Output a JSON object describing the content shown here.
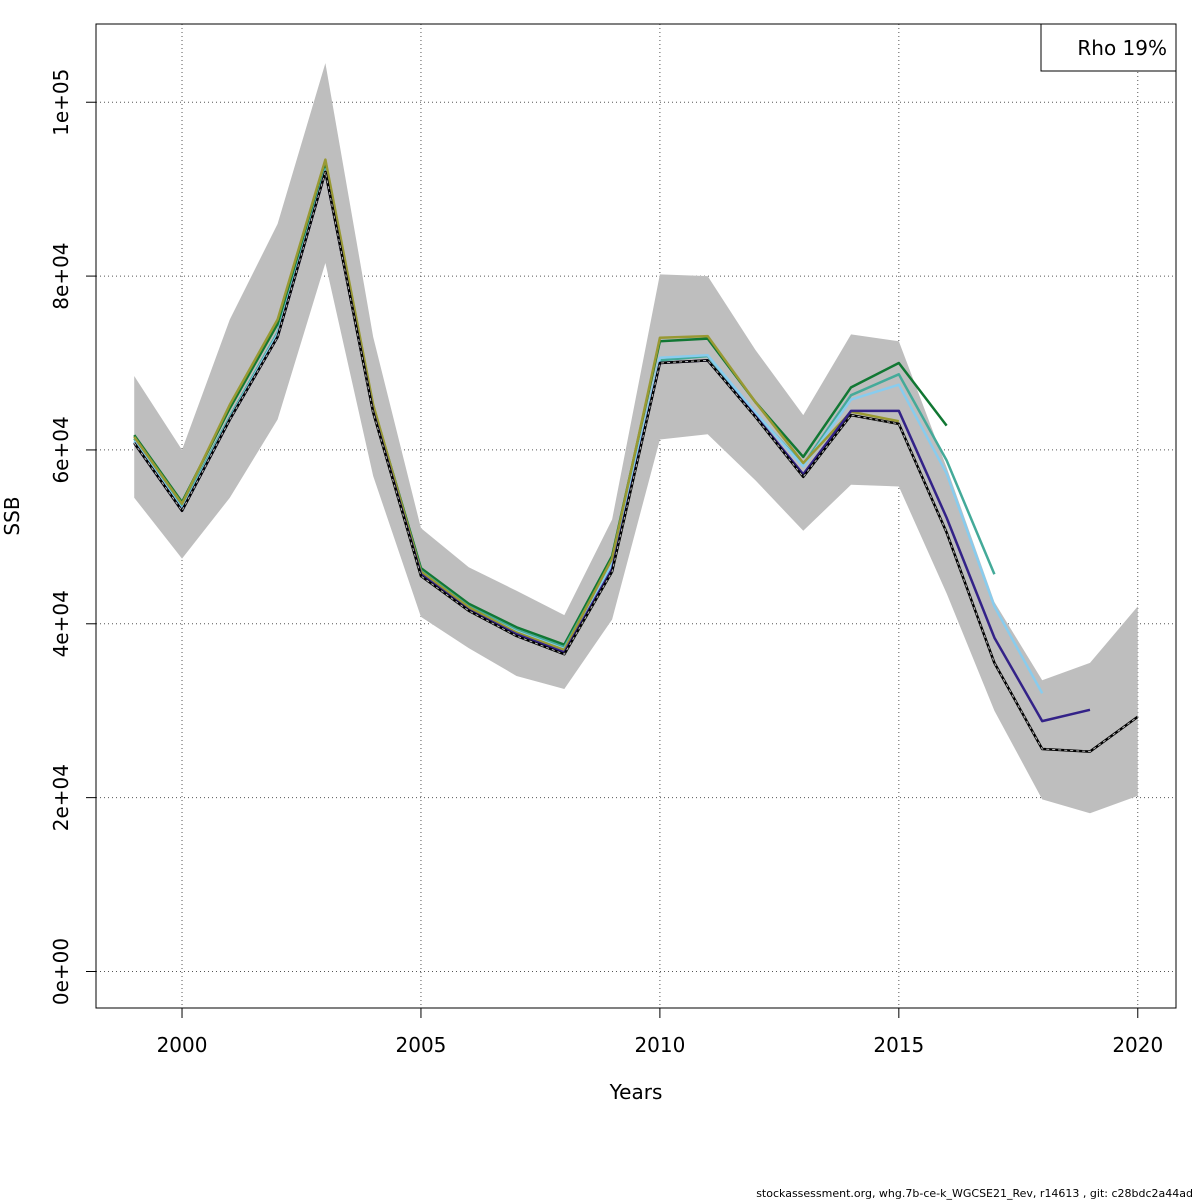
{
  "chart_data": {
    "type": "line",
    "title": "",
    "xlabel": "Years",
    "ylabel": "SSB",
    "xlim": [
      1998.2,
      2020.8
    ],
    "ylim": [
      -4200,
      109000
    ],
    "xticks": [
      2000,
      2005,
      2010,
      2015,
      2020
    ],
    "xtick_labels": [
      "2000",
      "2005",
      "2010",
      "2015",
      "2020"
    ],
    "yticks": [
      0,
      20000,
      40000,
      60000,
      80000,
      100000
    ],
    "ytick_labels": [
      "0e+00",
      "2e+04",
      "4e+04",
      "6e+04",
      "8e+04",
      "1e+05"
    ],
    "grid": true,
    "legend": {
      "placement": "top-right",
      "text": "Rho 19%"
    },
    "confidence_band": {
      "x": [
        1999,
        2000,
        2001,
        2002,
        2003,
        2004,
        2005,
        2006,
        2007,
        2008,
        2009,
        2010,
        2011,
        2012,
        2013,
        2014,
        2015,
        2016,
        2017,
        2018,
        2019,
        2020
      ],
      "upper": [
        68500,
        60000,
        75000,
        86000,
        104500,
        73000,
        51000,
        46500,
        43800,
        41000,
        52000,
        80200,
        80000,
        71500,
        64000,
        73300,
        72500,
        58000,
        42500,
        33500,
        35500,
        42000
      ],
      "lower": [
        54500,
        47500,
        54500,
        63500,
        81500,
        57000,
        40800,
        37200,
        34000,
        32500,
        40500,
        61200,
        61800,
        56500,
        50700,
        56000,
        55800,
        43500,
        30000,
        19800,
        18200,
        20200
      ],
      "color": "#bebebe"
    },
    "series": [
      {
        "x": [
          1999,
          2000,
          2001,
          2002,
          2003,
          2004,
          2005,
          2006,
          2007,
          2008,
          2009,
          2010,
          2011,
          2012,
          2013,
          2014,
          2015,
          2016
        ],
        "values": [
          61700,
          54000,
          64800,
          74500,
          93000,
          65000,
          46400,
          42300,
          39600,
          37600,
          47800,
          72500,
          72800,
          65500,
          59200,
          67200,
          70000,
          62800
        ],
        "color": "#117733",
        "width": 2.5,
        "dashed": false
      },
      {
        "x": [
          1999,
          2000,
          2001,
          2002,
          2003,
          2004,
          2005,
          2006,
          2007,
          2008,
          2009,
          2010,
          2011,
          2012,
          2013,
          2014,
          2015,
          2016,
          2017
        ],
        "values": [
          61300,
          53500,
          63800,
          73500,
          92300,
          64700,
          46100,
          42000,
          39300,
          37300,
          47300,
          70300,
          70800,
          64200,
          58300,
          66300,
          68700,
          58800,
          45700
        ],
        "color": "#44aa99",
        "width": 2.5,
        "dashed": false
      },
      {
        "x": [
          1999,
          2000,
          2001,
          2002,
          2003,
          2004,
          2005,
          2006,
          2007,
          2008,
          2009,
          2010,
          2011,
          2012,
          2013,
          2014,
          2015,
          2016,
          2017,
          2018
        ],
        "values": [
          61000,
          53200,
          63600,
          73300,
          92100,
          64500,
          45900,
          41800,
          39100,
          37100,
          46900,
          70600,
          70900,
          64300,
          58100,
          65800,
          67500,
          57300,
          42000,
          32000
        ],
        "color": "#88ccee",
        "width": 2.5,
        "dashed": false
      },
      {
        "x": [
          1999,
          2000,
          2001,
          2002,
          2003,
          2004,
          2005,
          2006,
          2007,
          2008,
          2009,
          2010,
          2011,
          2012,
          2013,
          2014,
          2015
        ],
        "values": [
          61500,
          53800,
          65200,
          75000,
          93400,
          65200,
          46000,
          41900,
          39000,
          37000,
          47500,
          72900,
          73100,
          65500,
          58500,
          64400,
          63300
        ],
        "color": "#999933",
        "width": 2.5,
        "dashed": false
      },
      {
        "x": [
          1999,
          2000,
          2001,
          2002,
          2003,
          2004,
          2005,
          2006,
          2007,
          2008,
          2009,
          2010,
          2011,
          2012,
          2013,
          2014,
          2015,
          2016,
          2017,
          2018,
          2019
        ],
        "values": [
          60800,
          53000,
          63500,
          73000,
          92000,
          64400,
          45700,
          41600,
          38800,
          36700,
          46300,
          70000,
          70300,
          63900,
          57200,
          64500,
          64500,
          52200,
          38400,
          28800,
          30100
        ],
        "color": "#332288",
        "width": 2.5,
        "dashed": false
      },
      {
        "x": [
          1999,
          2000,
          2001,
          2002,
          2003,
          2004,
          2005,
          2006,
          2007,
          2008,
          2009,
          2010,
          2011,
          2012,
          2013,
          2014,
          2015,
          2016,
          2017,
          2018,
          2019,
          2020
        ],
        "values": [
          60800,
          53000,
          63500,
          73000,
          92000,
          64300,
          45500,
          41500,
          38600,
          36500,
          46000,
          70000,
          70300,
          63800,
          56900,
          64000,
          63000,
          50500,
          35500,
          25600,
          25300,
          29300
        ],
        "color": "#000000",
        "width": 2,
        "dashed": true
      }
    ]
  },
  "footer": "stockassessment.org, whg.7b-ce-k_WGCSE21_Rev, r14613 , git: c28bdc2a44ad"
}
